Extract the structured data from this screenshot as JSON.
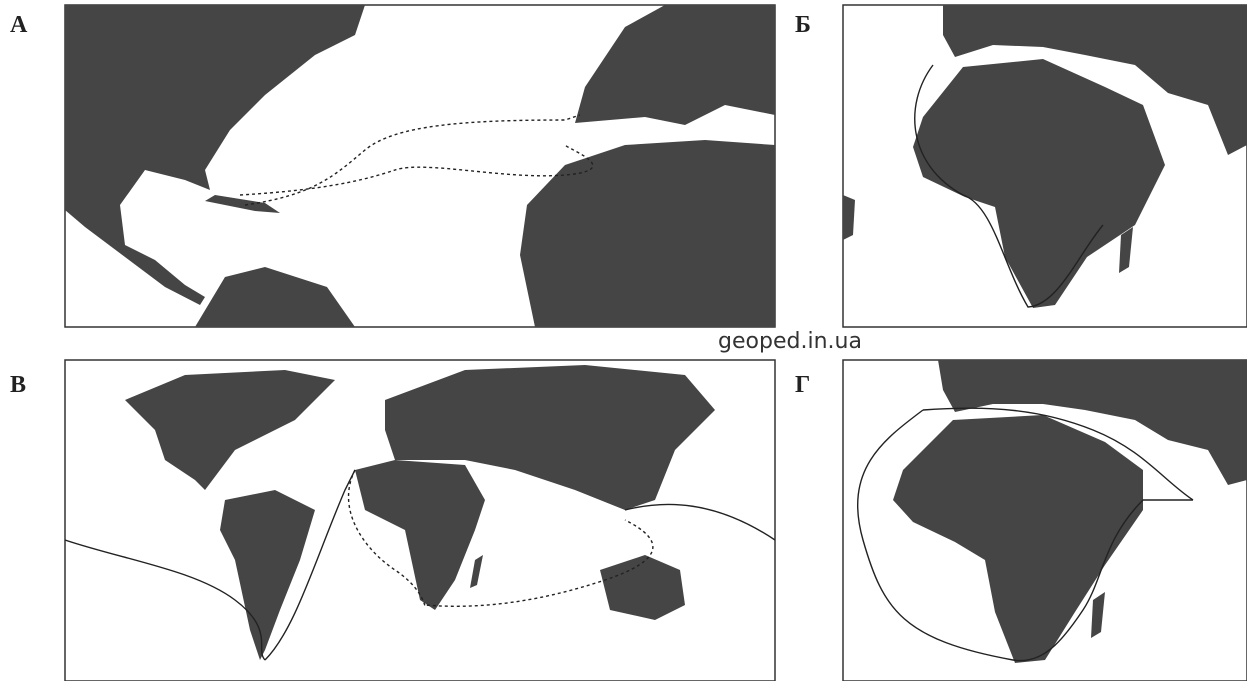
{
  "panels": [
    {
      "label": "А"
    },
    {
      "label": "Б"
    },
    {
      "label": "В"
    },
    {
      "label": "Г"
    }
  ],
  "watermark": "geoped.in.ua"
}
